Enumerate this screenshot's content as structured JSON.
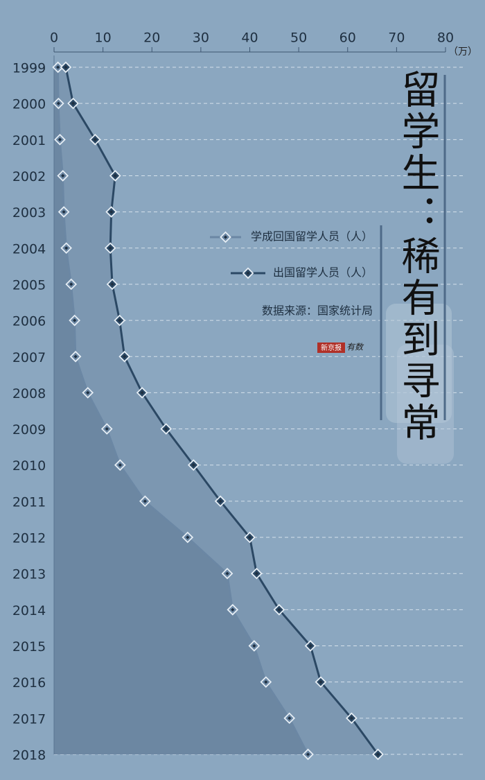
{
  "chart_data": {
    "type": "line",
    "title": "留学生：稀有到寻常",
    "x_unit": "（万）",
    "categories": [
      "1999",
      "2000",
      "2001",
      "2002",
      "2003",
      "2004",
      "2005",
      "2006",
      "2007",
      "2008",
      "2009",
      "2010",
      "2011",
      "2012",
      "2013",
      "2014",
      "2015",
      "2016",
      "2017",
      "2018"
    ],
    "series": [
      {
        "name": "学成回国留学人员（人）",
        "color": "#6b87a4",
        "values": [
          0.8,
          0.9,
          1.2,
          1.8,
          2.0,
          2.5,
          3.5,
          4.2,
          4.4,
          6.9,
          10.8,
          13.5,
          18.6,
          27.3,
          35.4,
          36.5,
          40.9,
          43.3,
          48.1,
          51.9
        ]
      },
      {
        "name": "出国留学人员（人）",
        "color": "#2b4864",
        "values": [
          2.4,
          3.9,
          8.4,
          12.5,
          11.7,
          11.5,
          11.9,
          13.4,
          14.4,
          18.0,
          22.9,
          28.5,
          34.0,
          40.0,
          41.4,
          46.0,
          52.4,
          54.5,
          60.8,
          66.2
        ]
      }
    ],
    "xlim": [
      0,
      80
    ],
    "xticks": [
      0,
      10,
      20,
      30,
      40,
      50,
      60,
      70,
      80
    ],
    "grid": true,
    "source": "数据来源：国家统计局",
    "logo": [
      "新京报",
      "有数"
    ]
  }
}
